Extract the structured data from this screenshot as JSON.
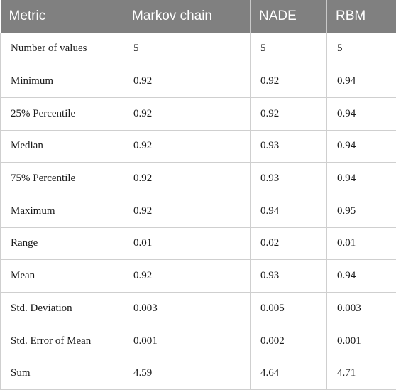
{
  "table": {
    "headers": [
      "Metric",
      "Markov chain",
      "NADE",
      "RBM"
    ],
    "rows": [
      [
        "Number of values",
        "5",
        "5",
        "5"
      ],
      [
        "Minimum",
        "0.92",
        "0.92",
        "0.94"
      ],
      [
        "25% Percentile",
        "0.92",
        "0.92",
        "0.94"
      ],
      [
        "Median",
        "0.92",
        "0.93",
        "0.94"
      ],
      [
        "75% Percentile",
        "0.92",
        "0.93",
        "0.94"
      ],
      [
        "Maximum",
        "0.92",
        "0.94",
        "0.95"
      ],
      [
        "Range",
        "0.01",
        "0.02",
        "0.01"
      ],
      [
        "Mean",
        "0.92",
        "0.93",
        "0.94"
      ],
      [
        "Std. Deviation",
        "0.003",
        "0.005",
        "0.003"
      ],
      [
        "Std. Error of Mean",
        "0.001",
        "0.002",
        "0.001"
      ],
      [
        "Sum",
        "4.59",
        "4.64",
        "4.71"
      ]
    ]
  },
  "colors": {
    "header_background": "#808080",
    "header_text": "#ffffff",
    "cell_border": "#cfcfcf"
  }
}
